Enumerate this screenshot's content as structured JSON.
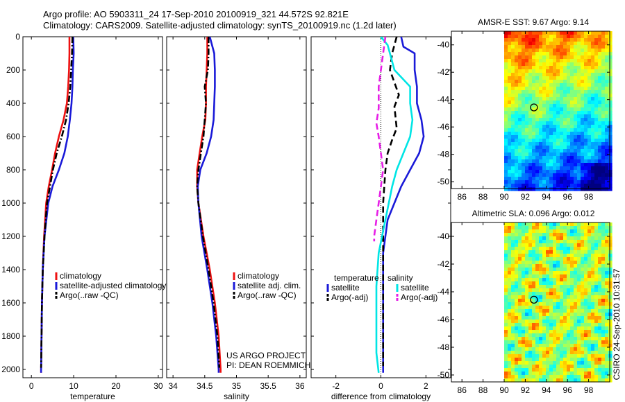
{
  "header": {
    "title_line1": "Argo profile: AO 5903311_24 17-Sep-2010 20100919_321 44.572S 92.821E",
    "title_line2": "Climatology: CARS2009. Satellite-adjusted climatology: synTS_20100919.nc (1.2d later)"
  },
  "colors": {
    "climatology": "#ee1111",
    "satellite": "#1a1ad8",
    "argo": "#000000",
    "sal_satellite": "#00e5e5",
    "sal_argo": "#e61ee6"
  },
  "side_labels": {
    "credit": "CSIRO 24-Sep-2010 10:31:57",
    "project": "US ARGO PROJECT",
    "pi": "PI: DEAN ROEMMICH"
  },
  "chart_data": [
    {
      "type": "line",
      "xlabel": "temperature",
      "ylabel": "",
      "xlim": [
        -2,
        31
      ],
      "ylim": [
        2050,
        0
      ],
      "y_reversed": true,
      "xticks": [
        0,
        10,
        20,
        30
      ],
      "yticks": [
        0,
        200,
        400,
        600,
        800,
        1000,
        1200,
        1400,
        1600,
        1800,
        2000
      ],
      "legend_location": "lower-left",
      "series": [
        {
          "name": "climatology",
          "color": "#ee1111",
          "style": "solid",
          "x": [
            9.0,
            9.0,
            8.9,
            8.7,
            8.4,
            7.6,
            6.5,
            5.6,
            4.9,
            4.1,
            3.5,
            3.0,
            2.7,
            2.5,
            2.4,
            2.3,
            2.3
          ],
          "y": [
            0,
            100,
            200,
            300,
            400,
            500,
            600,
            700,
            800,
            900,
            1000,
            1200,
            1400,
            1600,
            1800,
            2000,
            2020
          ]
        },
        {
          "name": "satellite-adjusted climatology",
          "color": "#1a1ad8",
          "style": "solid",
          "x": [
            9.9,
            10.0,
            9.8,
            9.7,
            9.5,
            9.1,
            8.6,
            7.8,
            6.5,
            5.0,
            4.0,
            3.1,
            2.7,
            2.5,
            2.4,
            2.3,
            2.3
          ],
          "y": [
            0,
            100,
            200,
            300,
            400,
            500,
            600,
            700,
            800,
            900,
            1000,
            1200,
            1400,
            1600,
            1800,
            2000,
            2020
          ]
        },
        {
          "name": "Argo(..raw -QC)",
          "color": "#000000",
          "style": "dashdot",
          "x": [
            9.7,
            9.6,
            9.4,
            9.2,
            8.8,
            8.2,
            7.2,
            6.0,
            5.1,
            4.4,
            3.7,
            3.1,
            2.7,
            2.5,
            2.4,
            2.3
          ],
          "y": [
            0,
            100,
            200,
            300,
            400,
            500,
            600,
            700,
            800,
            900,
            1000,
            1200,
            1400,
            1600,
            1800,
            1990
          ]
        }
      ]
    },
    {
      "type": "line",
      "xlabel": "salinity",
      "ylabel": "",
      "xlim": [
        33.9,
        36.1
      ],
      "ylim": [
        2050,
        0
      ],
      "y_reversed": true,
      "xticks": [
        34,
        34.5,
        35,
        35.5,
        36
      ],
      "yticks": [
        0,
        200,
        400,
        600,
        800,
        1000,
        1200,
        1400,
        1600,
        1800,
        2000
      ],
      "legend_location": "lower-center",
      "series": [
        {
          "name": "climatology",
          "color": "#ee1111",
          "style": "solid",
          "x": [
            34.54,
            34.54,
            34.53,
            34.52,
            34.52,
            34.51,
            34.46,
            34.42,
            34.38,
            34.38,
            34.4,
            34.48,
            34.58,
            34.66,
            34.72,
            34.75,
            34.75
          ],
          "y": [
            0,
            100,
            200,
            300,
            400,
            500,
            600,
            700,
            800,
            900,
            1000,
            1200,
            1400,
            1600,
            1800,
            2000,
            2020
          ]
        },
        {
          "name": "satellite adj. clim.",
          "color": "#1a1ad8",
          "style": "solid",
          "x": [
            34.58,
            34.65,
            34.66,
            34.66,
            34.65,
            34.64,
            34.6,
            34.53,
            34.43,
            34.39,
            34.4,
            34.45,
            34.54,
            34.62,
            34.68,
            34.72,
            34.72
          ],
          "y": [
            0,
            100,
            200,
            300,
            400,
            500,
            600,
            700,
            800,
            900,
            1000,
            1200,
            1400,
            1600,
            1800,
            2000,
            2020
          ]
        },
        {
          "name": "Argo(..raw -QC)",
          "color": "#000000",
          "style": "dashdot",
          "x": [
            34.56,
            34.56,
            34.55,
            34.5,
            34.52,
            34.5,
            34.48,
            34.44,
            34.4,
            34.38,
            34.4,
            34.47,
            34.56,
            34.64,
            34.7,
            34.73
          ],
          "y": [
            0,
            100,
            200,
            300,
            400,
            500,
            600,
            700,
            800,
            900,
            1000,
            1200,
            1400,
            1600,
            1800,
            1990
          ]
        }
      ]
    },
    {
      "type": "line",
      "xlabel": "difference from climatology",
      "ylabel": "",
      "xlim": [
        -3.1,
        3.1
      ],
      "ylim": [
        2050,
        0
      ],
      "y_reversed": true,
      "xticks": [
        -2,
        0,
        2
      ],
      "yticks": [
        0,
        200,
        400,
        600,
        800,
        1000,
        1200,
        1400,
        1600,
        1800,
        2000
      ],
      "zero_line": "dotted",
      "legend_location": "lower-center",
      "legend_groups": [
        {
          "title": "temperature",
          "entries": [
            "satellite",
            "Argo(-adj)"
          ]
        },
        {
          "title": "salinity",
          "entries": [
            "satellite",
            "Argo(-adj)"
          ]
        }
      ],
      "series": [
        {
          "name": "satellite",
          "group": "temperature",
          "color": "#1a1ad8",
          "style": "solid",
          "x": [
            0.9,
            1.0,
            1.5,
            1.5,
            1.6,
            1.6,
            1.8,
            1.9,
            1.7,
            1.3,
            0.9,
            0.3,
            0.1,
            0.1,
            0.1,
            0.1,
            0.1
          ],
          "y": [
            0,
            60,
            100,
            200,
            300,
            400,
            500,
            600,
            700,
            800,
            900,
            1100,
            1300,
            1500,
            1700,
            1900,
            2020
          ]
        },
        {
          "name": "Argo(-adj)",
          "group": "temperature",
          "color": "#000000",
          "style": "dashed",
          "x": [
            0.7,
            0.6,
            0.5,
            0.4,
            0.8,
            0.6,
            0.7,
            0.5,
            0.3,
            0.2,
            0.1,
            0.1,
            0.1,
            0.1
          ],
          "y": [
            0,
            50,
            100,
            200,
            350,
            420,
            550,
            620,
            700,
            800,
            1000,
            1300,
            1600,
            1980
          ]
        },
        {
          "name": "satellite",
          "group": "salinity",
          "color": "#00e5e5",
          "style": "solid",
          "x": [
            0.0,
            0.3,
            0.4,
            0.6,
            1.3,
            1.3,
            1.4,
            1.3,
            1.0,
            0.7,
            0.5,
            0.2,
            -0.1,
            -0.2,
            -0.2,
            -0.2,
            -0.1
          ],
          "y": [
            0,
            50,
            100,
            200,
            300,
            400,
            500,
            600,
            700,
            800,
            900,
            1100,
            1300,
            1500,
            1700,
            1900,
            2020
          ]
        },
        {
          "name": "Argo(-adj)",
          "group": "salinity",
          "color": "#e61ee6",
          "style": "dashed",
          "x": [
            0.2,
            0.1,
            0.0,
            -0.1,
            -0.1,
            -0.2,
            -0.1,
            0.0,
            0.1,
            0.0,
            -0.1,
            -0.2,
            -0.3,
            -0.3
          ],
          "y": [
            0,
            100,
            200,
            300,
            430,
            520,
            600,
            700,
            800,
            900,
            1000,
            1100,
            1200,
            1230
          ]
        }
      ]
    },
    {
      "type": "heatmap",
      "title": "AMSR-E SST: 9.67 Argo: 9.14",
      "xlim": [
        85,
        100
      ],
      "ylim": [
        -50.5,
        -39
      ],
      "xticks": [
        86,
        88,
        90,
        92,
        94,
        96,
        98
      ],
      "yticks": [
        -40,
        -42,
        -44,
        -46,
        -48,
        -50
      ],
      "data_extent": {
        "x": [
          90,
          100
        ],
        "y": [
          -50.5,
          -39
        ]
      },
      "colormap": "jet",
      "trend": "warm (orange) in north, cold (blue) in south",
      "argo_marker": {
        "lon": 92.821,
        "lat": -44.572
      }
    },
    {
      "type": "heatmap",
      "title": "Altimetric SLA: 0.096 Argo: 0.012",
      "xlim": [
        85,
        100
      ],
      "ylim": [
        -50.5,
        -39
      ],
      "xticks": [
        86,
        88,
        90,
        92,
        94,
        96,
        98
      ],
      "yticks": [
        -40,
        -42,
        -44,
        -46,
        -48,
        -50
      ],
      "data_extent": {
        "x": [
          90,
          100
        ],
        "y": [
          -50.5,
          -39
        ]
      },
      "colormap": "jet",
      "trend": "mostly green with yellow and cyan patches",
      "argo_marker": {
        "lon": 92.821,
        "lat": -44.572
      }
    }
  ]
}
